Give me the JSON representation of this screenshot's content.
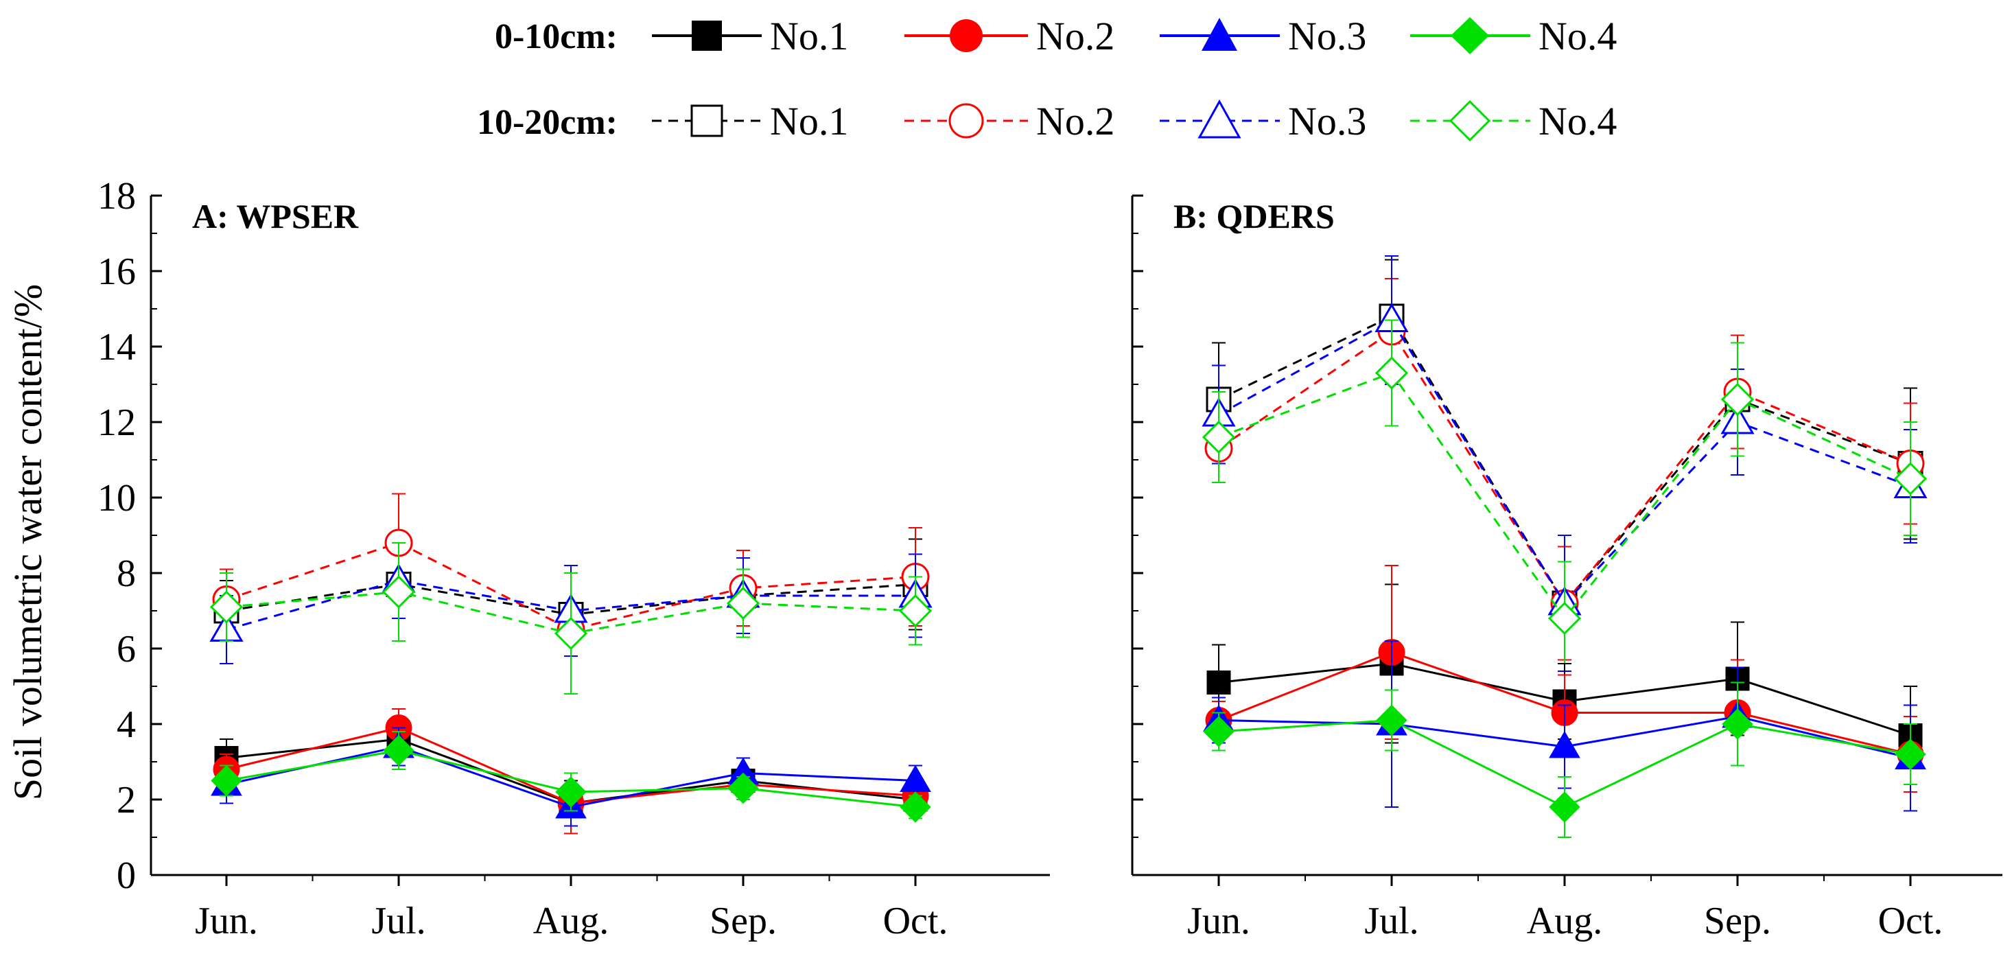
{
  "legend": {
    "row_0_10": "0-10cm:",
    "row_10_20": "10-20cm:",
    "series_labels": [
      "No.1",
      "No.2",
      "No.3",
      "No.4"
    ]
  },
  "y_axis_label": "Soil volumetric water content/%",
  "colors": {
    "No.1": "#000000",
    "No.2": "#ff0000",
    "No.3": "#0000ff",
    "No.4": "#00e000"
  },
  "chart_data": [
    {
      "type": "line",
      "title": "A: WPSER",
      "xlabel": "",
      "ylabel": "Soil volumetric water content/%",
      "categories": [
        "Jun.",
        "Jul.",
        "Aug.",
        "Sep.",
        "Oct."
      ],
      "ylim": [
        0,
        18
      ],
      "yticks": [
        0,
        2,
        4,
        6,
        8,
        10,
        12,
        14,
        16,
        18
      ],
      "series": [
        {
          "name": "No.1",
          "depth": "0-10cm",
          "values": [
            3.1,
            3.6,
            1.9,
            2.5,
            2.0
          ],
          "errors": [
            0.5,
            0.5,
            0.6,
            0.3,
            0.3
          ]
        },
        {
          "name": "No.2",
          "depth": "0-10cm",
          "values": [
            2.8,
            3.9,
            1.9,
            2.4,
            2.1
          ],
          "errors": [
            0.4,
            0.5,
            0.8,
            0.3,
            0.3
          ]
        },
        {
          "name": "No.3",
          "depth": "0-10cm",
          "values": [
            2.4,
            3.4,
            1.8,
            2.7,
            2.5
          ],
          "errors": [
            0.5,
            0.5,
            0.5,
            0.4,
            0.4
          ]
        },
        {
          "name": "No.4",
          "depth": "0-10cm",
          "values": [
            2.5,
            3.3,
            2.2,
            2.3,
            1.8
          ],
          "errors": [
            0.4,
            0.5,
            0.5,
            0.3,
            0.3
          ]
        },
        {
          "name": "No.1",
          "depth": "10-20cm",
          "values": [
            7.0,
            7.7,
            6.9,
            7.4,
            7.7
          ],
          "errors": [
            0.8,
            0.9,
            1.1,
            1.0,
            1.2
          ]
        },
        {
          "name": "No.2",
          "depth": "10-20cm",
          "values": [
            7.3,
            8.8,
            6.5,
            7.6,
            7.9
          ],
          "errors": [
            0.8,
            1.3,
            1.7,
            1.0,
            1.3
          ]
        },
        {
          "name": "No.3",
          "depth": "10-20cm",
          "values": [
            6.5,
            7.8,
            7.0,
            7.4,
            7.4
          ],
          "errors": [
            0.9,
            1.0,
            1.2,
            1.0,
            1.1
          ]
        },
        {
          "name": "No.4",
          "depth": "10-20cm",
          "values": [
            7.1,
            7.5,
            6.4,
            7.2,
            7.0
          ],
          "errors": [
            0.9,
            1.3,
            1.6,
            0.9,
            0.9
          ]
        }
      ]
    },
    {
      "type": "line",
      "title": "B: QDERS",
      "xlabel": "",
      "ylabel": "Soil volumetric water content/%",
      "categories": [
        "Jun.",
        "Jul.",
        "Aug.",
        "Sep.",
        "Oct."
      ],
      "ylim": [
        0,
        18
      ],
      "yticks": [
        0,
        2,
        4,
        6,
        8,
        10,
        12,
        14,
        16,
        18
      ],
      "series": [
        {
          "name": "No.1",
          "depth": "0-10cm",
          "values": [
            5.1,
            5.6,
            4.6,
            5.2,
            3.7
          ],
          "errors": [
            1.0,
            2.1,
            1.0,
            1.5,
            1.3
          ]
        },
        {
          "name": "No.2",
          "depth": "0-10cm",
          "values": [
            4.1,
            5.9,
            4.3,
            4.3,
            3.2
          ],
          "errors": [
            0.5,
            2.3,
            1.0,
            1.4,
            1.0
          ]
        },
        {
          "name": "No.3",
          "depth": "0-10cm",
          "values": [
            4.1,
            4.0,
            3.4,
            4.2,
            3.1
          ],
          "errors": [
            0.6,
            2.2,
            1.1,
            1.3,
            1.4
          ]
        },
        {
          "name": "No.4",
          "depth": "0-10cm",
          "values": [
            3.8,
            4.1,
            1.8,
            4.0,
            3.2
          ],
          "errors": [
            0.5,
            0.8,
            0.8,
            1.1,
            0.8
          ]
        },
        {
          "name": "No.1",
          "depth": "10-20cm",
          "values": [
            12.6,
            14.8,
            7.2,
            12.6,
            10.9
          ],
          "errors": [
            1.5,
            1.5,
            1.5,
            1.5,
            2.0
          ]
        },
        {
          "name": "No.2",
          "depth": "10-20cm",
          "values": [
            11.3,
            14.4,
            7.2,
            12.8,
            10.9
          ],
          "errors": [
            0.9,
            1.4,
            1.5,
            1.5,
            1.6
          ]
        },
        {
          "name": "No.3",
          "depth": "10-20cm",
          "values": [
            12.2,
            14.7,
            7.2,
            12.0,
            10.3
          ],
          "errors": [
            1.3,
            1.7,
            1.8,
            1.4,
            1.5
          ]
        },
        {
          "name": "No.4",
          "depth": "10-20cm",
          "values": [
            11.6,
            13.3,
            6.8,
            12.6,
            10.5
          ],
          "errors": [
            1.2,
            1.4,
            1.5,
            1.5,
            1.5
          ]
        }
      ]
    }
  ]
}
